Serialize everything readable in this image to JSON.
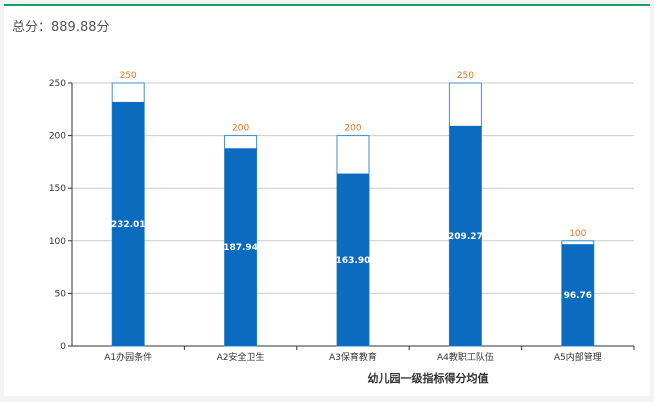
{
  "header": {
    "total_label": "总分：889.88分"
  },
  "colors": {
    "bar_fill": "#0b6bbf",
    "bar_outline": "#3d8fd6",
    "max_label": "#e8771d",
    "value_label": "#ffffff",
    "grid": "#cccccc",
    "accent_top": "#19a15f"
  },
  "chart_data": {
    "type": "bar",
    "categories": [
      "A1办园条件",
      "A2安全卫生",
      "A3保育教育",
      "A4教职工队伍",
      "A5内部管理"
    ],
    "series": [
      {
        "values": [
          232.01,
          187.94,
          163.9,
          209.27,
          96.76
        ]
      },
      {
        "values": [
          250,
          200,
          200,
          250,
          100
        ]
      }
    ],
    "value_labels": [
      "232.01",
      "187.94",
      "163.90",
      "209.27",
      "96.76"
    ],
    "max_labels": [
      "250",
      "200",
      "200",
      "250",
      "100"
    ],
    "xlabel": "幼儿园一级指标得分均值",
    "ylabel": "",
    "ylim": [
      0,
      250
    ],
    "yticks": [
      0,
      50,
      100,
      150,
      200,
      250
    ],
    "grid": true,
    "legend": "none"
  }
}
